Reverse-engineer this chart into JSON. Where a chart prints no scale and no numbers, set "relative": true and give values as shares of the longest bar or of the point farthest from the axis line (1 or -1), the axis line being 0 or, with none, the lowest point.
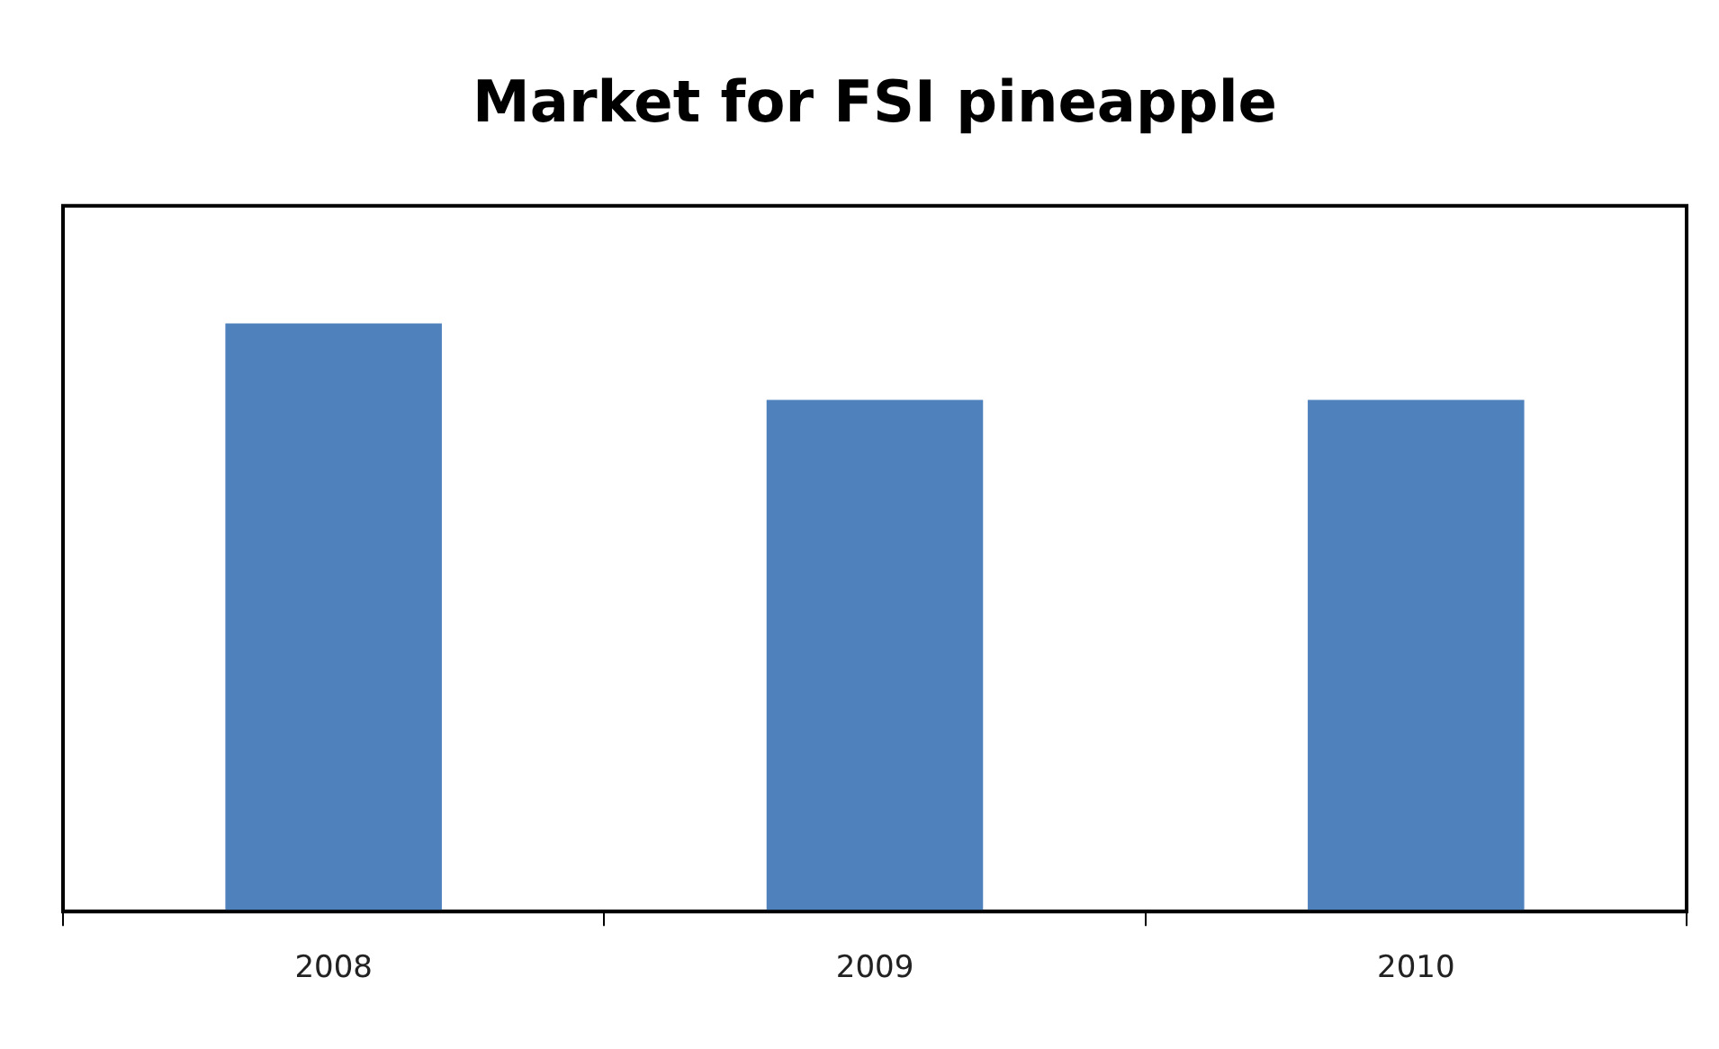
{
  "chart_data": {
    "type": "bar",
    "title": "Market for FSI pineapple",
    "categories": [
      "2008",
      "2009",
      "2010"
    ],
    "values": [
      1,
      0.87,
      0.87
    ],
    "color": "#4f81bd",
    "relative": true,
    "grid": false,
    "legend": false
  }
}
